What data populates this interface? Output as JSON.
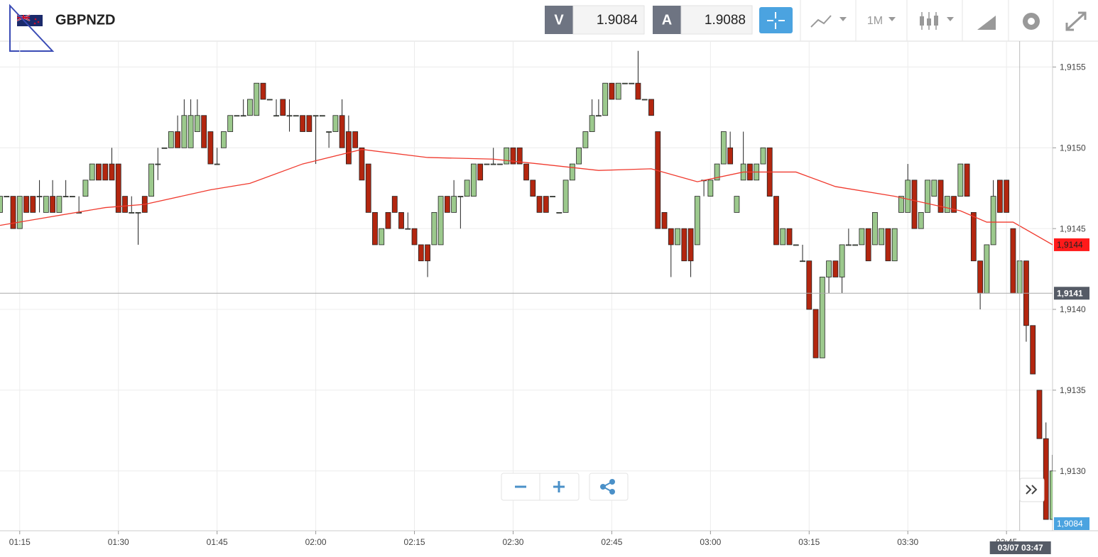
{
  "header": {
    "symbol": "GBPNZD",
    "bid_label": "V",
    "bid": "1.9084",
    "ask_label": "A",
    "ask": "1.9088",
    "timeframe": "1M"
  },
  "chart_data": {
    "type": "candlestick",
    "up_color": "#9cc98d",
    "down_color": "#b3260f",
    "grid": true,
    "x": [
      72,
      73,
      74,
      75,
      76,
      77,
      78,
      79,
      80,
      81,
      82,
      83,
      84,
      85,
      86,
      87,
      88,
      89,
      90,
      91,
      92,
      93,
      94,
      95,
      96,
      97,
      98,
      99,
      100,
      101,
      102,
      103,
      104,
      105,
      106,
      107,
      108,
      109,
      110,
      111,
      112,
      113,
      114,
      115,
      116,
      117,
      118,
      119,
      120,
      121,
      122,
      123,
      124,
      125,
      126,
      127,
      128,
      129,
      130,
      131,
      132,
      133,
      134,
      135,
      136,
      137,
      138,
      139,
      140,
      141,
      142,
      143,
      144,
      145,
      146,
      147,
      148,
      149,
      150,
      151,
      152,
      153,
      154,
      155,
      156,
      157,
      158,
      159,
      160,
      161,
      162,
      163,
      164,
      165,
      166,
      167,
      168,
      169,
      170,
      171,
      172,
      173,
      174,
      175,
      176,
      177,
      178,
      179,
      180,
      181,
      182,
      183,
      184,
      185,
      186,
      187,
      188,
      189,
      190,
      191,
      192,
      193,
      194,
      195,
      196,
      197,
      198,
      199,
      200,
      201,
      202,
      203,
      204,
      205,
      206,
      207,
      208,
      209,
      210,
      211,
      212,
      213,
      214,
      215,
      216,
      217,
      218,
      219,
      220,
      221,
      222,
      223,
      224,
      225,
      226,
      227,
      228,
      229,
      230,
      231,
      232
    ],
    "open": [
      1.9146,
      1.9147,
      1.9147,
      1.9145,
      1.9147,
      1.9147,
      1.9147,
      1.9146,
      1.9147,
      1.9146,
      1.9147,
      1.9147,
      1.9146,
      1.9147,
      1.9148,
      1.9149,
      1.9149,
      1.9149,
      1.9149,
      1.9147,
      1.9146,
      1.9146,
      1.9147,
      1.9147,
      1.9149,
      1.915,
      1.915,
      1.9151,
      1.915,
      1.915,
      1.9151,
      1.9152,
      1.9151,
      1.9149,
      1.915,
      1.9151,
      1.9152,
      1.9152,
      1.9152,
      1.9152,
      1.9154,
      1.9153,
      1.9152,
      1.9153,
      1.9152,
      1.9152,
      1.9152,
      1.9152,
      1.9152,
      1.9152,
      1.9151,
      1.9151,
      1.9152,
      1.9151,
      1.9151,
      1.915,
      1.9149,
      1.9146,
      1.9144,
      1.9146,
      1.9147,
      1.9146,
      1.9145,
      1.9145,
      1.9144,
      1.9144,
      1.9144,
      1.9144,
      1.9147,
      1.9146,
      1.9147,
      1.9147,
      1.9147,
      1.9149,
      1.9149,
      1.9149,
      1.9149,
      1.9149,
      1.915,
      1.915,
      1.9149,
      1.9148,
      1.9147,
      1.9147,
      1.9147,
      1.9146,
      1.9146,
      1.9148,
      1.9149,
      1.915,
      1.9151,
      1.9152,
      1.9152,
      1.9154,
      1.9153,
      1.9154,
      1.9154,
      1.9154,
      1.9153,
      1.9153,
      1.9151,
      1.9146,
      1.9145,
      1.9144,
      1.9145,
      1.9145,
      1.9144,
      1.9148,
      1.9147,
      1.9148,
      1.9149,
      1.915,
      1.9146,
      1.9148,
      1.9149,
      1.9148,
      1.9149,
      1.915,
      1.9147,
      1.9144,
      1.9145,
      1.9144,
      1.9143,
      1.9143,
      1.914,
      1.9137,
      1.9142,
      1.9143,
      1.9142,
      1.9144,
      1.9144,
      1.9144,
      1.9145,
      1.9144,
      1.9144,
      1.9145,
      1.9143,
      1.9146,
      1.9146,
      1.9148,
      1.9145,
      1.9146,
      1.9147,
      1.9148,
      1.9146,
      1.9147,
      1.9147,
      1.9149,
      1.9146,
      1.9143,
      1.9141,
      1.9144,
      1.9148,
      1.9148,
      1.9145,
      1.9141,
      1.9143,
      1.9139,
      1.9135,
      1.9132,
      1.9127
    ],
    "high": [
      1.9147,
      1.9147,
      1.9147,
      1.9147,
      1.9147,
      1.9147,
      1.9148,
      1.9147,
      1.9148,
      1.9147,
      1.9148,
      1.9147,
      1.9147,
      1.9148,
      1.9149,
      1.9149,
      1.9149,
      1.915,
      1.9149,
      1.9147,
      1.9147,
      1.9146,
      1.9147,
      1.9149,
      1.915,
      1.915,
      1.9151,
      1.9152,
      1.9153,
      1.9153,
      1.9153,
      1.9152,
      1.9151,
      1.915,
      1.9151,
      1.9152,
      1.9152,
      1.9153,
      1.9153,
      1.9154,
      1.9154,
      1.9153,
      1.9153,
      1.9153,
      1.9153,
      1.9152,
      1.9152,
      1.9152,
      1.9152,
      1.9152,
      1.9151,
      1.9152,
      1.9153,
      1.9152,
      1.9151,
      1.915,
      1.9149,
      1.9146,
      1.9145,
      1.9146,
      1.9147,
      1.9146,
      1.9146,
      1.9145,
      1.9144,
      1.9144,
      1.9146,
      1.9147,
      1.9147,
      1.9148,
      1.9147,
      1.9148,
      1.9149,
      1.9149,
      1.9149,
      1.915,
      1.9149,
      1.915,
      1.915,
      1.915,
      1.9149,
      1.9148,
      1.9147,
      1.9147,
      1.9147,
      1.9146,
      1.9148,
      1.9149,
      1.915,
      1.9151,
      1.9153,
      1.9153,
      1.9154,
      1.9154,
      1.9154,
      1.9154,
      1.9154,
      1.9156,
      1.9153,
      1.9153,
      1.9151,
      1.9146,
      1.9145,
      1.9145,
      1.9145,
      1.9145,
      1.9147,
      1.9148,
      1.9148,
      1.9149,
      1.9151,
      1.9151,
      1.9147,
      1.9151,
      1.9149,
      1.9149,
      1.915,
      1.915,
      1.9147,
      1.9145,
      1.9145,
      1.9144,
      1.9144,
      1.9143,
      1.914,
      1.9142,
      1.9143,
      1.9143,
      1.9144,
      1.9145,
      1.9144,
      1.9145,
      1.9145,
      1.9146,
      1.9145,
      1.9145,
      1.9145,
      1.9147,
      1.9149,
      1.9148,
      1.9146,
      1.9148,
      1.9148,
      1.9148,
      1.9147,
      1.9147,
      1.9149,
      1.9149,
      1.9146,
      1.9143,
      1.9144,
      1.9148,
      1.9148,
      1.9148,
      1.9145,
      1.9143,
      1.9143,
      1.9139,
      1.9135,
      1.9133,
      1.9131
    ],
    "low": [
      1.9146,
      1.9147,
      1.9145,
      1.9145,
      1.9146,
      1.9146,
      1.9146,
      1.9146,
      1.9146,
      1.9146,
      1.9147,
      1.9147,
      1.9146,
      1.9147,
      1.9148,
      1.9148,
      1.9148,
      1.9148,
      1.9146,
      1.9146,
      1.9146,
      1.9144,
      1.9146,
      1.9147,
      1.9148,
      1.915,
      1.915,
      1.915,
      1.915,
      1.915,
      1.9151,
      1.915,
      1.9149,
      1.9149,
      1.915,
      1.9151,
      1.9152,
      1.9152,
      1.9152,
      1.9152,
      1.9153,
      1.9153,
      1.9152,
      1.9152,
      1.9151,
      1.9152,
      1.9151,
      1.9151,
      1.9149,
      1.9152,
      1.915,
      1.9151,
      1.915,
      1.9149,
      1.915,
      1.9148,
      1.9146,
      1.9144,
      1.9144,
      1.9145,
      1.9146,
      1.9145,
      1.9145,
      1.9144,
      1.9143,
      1.9142,
      1.9144,
      1.9144,
      1.9146,
      1.9146,
      1.9145,
      1.9147,
      1.9147,
      1.9148,
      1.9149,
      1.9149,
      1.9149,
      1.9149,
      1.9149,
      1.9149,
      1.9148,
      1.9147,
      1.9146,
      1.9146,
      1.9147,
      1.9146,
      1.9146,
      1.9148,
      1.9149,
      1.915,
      1.9151,
      1.9152,
      1.9152,
      1.9153,
      1.9153,
      1.9154,
      1.9154,
      1.9153,
      1.9153,
      1.9152,
      1.9145,
      1.9145,
      1.9142,
      1.9144,
      1.9143,
      1.9142,
      1.9144,
      1.9147,
      1.9147,
      1.9148,
      1.9149,
      1.9149,
      1.9146,
      1.9148,
      1.9148,
      1.9148,
      1.9149,
      1.9147,
      1.9144,
      1.9144,
      1.9144,
      1.9144,
      1.9143,
      1.914,
      1.9137,
      1.9137,
      1.9141,
      1.9142,
      1.9141,
      1.9144,
      1.9144,
      1.9144,
      1.9143,
      1.9144,
      1.9144,
      1.9143,
      1.9143,
      1.9146,
      1.9146,
      1.9145,
      1.9145,
      1.9146,
      1.9147,
      1.9146,
      1.9146,
      1.9146,
      1.9147,
      1.9147,
      1.9143,
      1.914,
      1.9141,
      1.9144,
      1.9146,
      1.9146,
      1.9141,
      1.9141,
      1.9138,
      1.9136,
      1.9132,
      1.9127,
      1.9127
    ],
    "close": [
      1.9147,
      1.9147,
      1.9145,
      1.9147,
      1.9146,
      1.9146,
      1.9147,
      1.9147,
      1.9146,
      1.9147,
      1.9147,
      1.9147,
      1.9146,
      1.9148,
      1.9149,
      1.9148,
      1.9148,
      1.9148,
      1.9146,
      1.9146,
      1.9146,
      1.9146,
      1.9146,
      1.9149,
      1.9149,
      1.915,
      1.9151,
      1.915,
      1.9152,
      1.9152,
      1.9152,
      1.915,
      1.9149,
      1.9149,
      1.9151,
      1.9152,
      1.9152,
      1.9152,
      1.9153,
      1.9154,
      1.9153,
      1.9153,
      1.9152,
      1.9152,
      1.9152,
      1.9152,
      1.9151,
      1.9151,
      1.9152,
      1.9152,
      1.9151,
      1.9152,
      1.915,
      1.9149,
      1.915,
      1.9148,
      1.9146,
      1.9144,
      1.9145,
      1.9145,
      1.9146,
      1.9145,
      1.9145,
      1.9144,
      1.9143,
      1.9143,
      1.9146,
      1.9147,
      1.9146,
      1.9147,
      1.9147,
      1.9148,
      1.9149,
      1.9148,
      1.9149,
      1.9149,
      1.9149,
      1.915,
      1.9149,
      1.9149,
      1.9148,
      1.9147,
      1.9146,
      1.9146,
      1.9147,
      1.9146,
      1.9148,
      1.9149,
      1.915,
      1.9151,
      1.9152,
      1.9152,
      1.9154,
      1.9153,
      1.9154,
      1.9154,
      1.9154,
      1.9153,
      1.9153,
      1.9152,
      1.9145,
      1.9145,
      1.9144,
      1.9145,
      1.9143,
      1.9143,
      1.9147,
      1.9148,
      1.9148,
      1.9149,
      1.9151,
      1.9149,
      1.9147,
      1.9149,
      1.9148,
      1.9149,
      1.915,
      1.9147,
      1.9144,
      1.9145,
      1.9144,
      1.9144,
      1.9143,
      1.914,
      1.9137,
      1.9142,
      1.9143,
      1.9142,
      1.9144,
      1.9144,
      1.9144,
      1.9145,
      1.9143,
      1.9146,
      1.9145,
      1.9143,
      1.9145,
      1.9147,
      1.9148,
      1.9145,
      1.9146,
      1.9148,
      1.9148,
      1.9146,
      1.9147,
      1.9146,
      1.9149,
      1.9147,
      1.9143,
      1.9141,
      1.9144,
      1.9147,
      1.9146,
      1.9146,
      1.9141,
      1.9143,
      1.9139,
      1.9136,
      1.9132,
      1.9127,
      1.913
    ],
    "ma": {
      "color": "#f03a2e",
      "x": [
        72,
        88,
        94,
        104,
        110,
        118,
        127,
        137,
        147,
        154,
        163,
        171,
        178,
        185,
        193,
        199,
        208,
        218,
        222,
        226,
        232
      ],
      "values": [
        1.91452,
        1.91463,
        1.91465,
        1.91474,
        1.91478,
        1.9149,
        1.91499,
        1.91494,
        1.91493,
        1.9149,
        1.91486,
        1.91487,
        1.91479,
        1.91485,
        1.91485,
        1.91476,
        1.9147,
        1.91461,
        1.91454,
        1.91454,
        1.9144
      ]
    },
    "last_value_label": "1,9144",
    "crosshair": {
      "x": {
        "value": 227,
        "label": "03/07 03:47"
      },
      "y": {
        "value": 1.9141,
        "label": "1,9141"
      }
    },
    "bid_tag": "1,9084",
    "xlim": [
      72,
      232
    ],
    "ylim": [
      1.91263,
      1.91566
    ],
    "xticks": [
      {
        "value": 75,
        "label": "01:15"
      },
      {
        "value": 90,
        "label": "01:30"
      },
      {
        "value": 105,
        "label": "01:45"
      },
      {
        "value": 120,
        "label": "02:00"
      },
      {
        "value": 135,
        "label": "02:15"
      },
      {
        "value": 150,
        "label": "02:30"
      },
      {
        "value": 165,
        "label": "02:45"
      },
      {
        "value": 180,
        "label": "03:00"
      },
      {
        "value": 195,
        "label": "03:15"
      },
      {
        "value": 210,
        "label": "03:30"
      },
      {
        "value": 225,
        "label": "03:45"
      }
    ],
    "yticks": [
      {
        "value": 1.913,
        "label": "1,9130"
      },
      {
        "value": 1.9135,
        "label": "1,9135"
      },
      {
        "value": 1.914,
        "label": "1,9140"
      },
      {
        "value": 1.9145,
        "label": "1,9145"
      },
      {
        "value": 1.915,
        "label": "1,9150"
      },
      {
        "value": 1.9155,
        "label": "1,9155"
      }
    ]
  }
}
